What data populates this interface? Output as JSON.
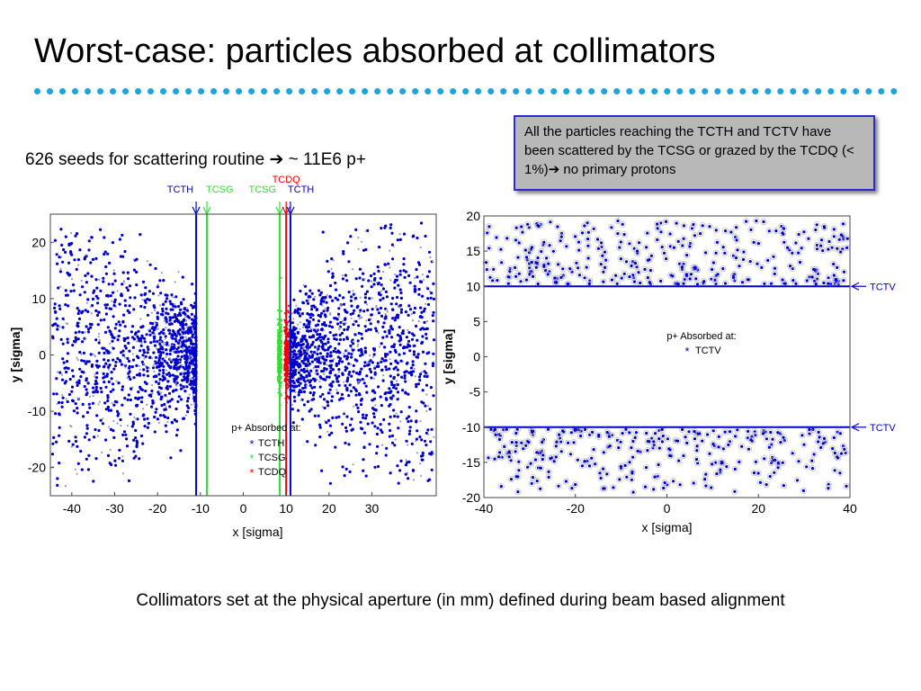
{
  "slide": {
    "title": "Worst-case: particles absorbed at collimators",
    "subtitle": "626 seeds for scattering routine",
    "subtitle_arrow": "➔",
    "subtitle_tail": " ~ 11E6 p+",
    "info_text": "All the particles reaching the TCTH and TCTV have been scattered by the TCSG or grazed by the TCDQ (< 1%)",
    "info_arrow": "➔",
    "info_tail": " no primary protons",
    "footer": "Collimators set at the physical aperture (in mm) defined during beam based alignment",
    "colors": {
      "accent_line": "#1ea3e0",
      "blue": "#0000cc",
      "green": "#33dd33",
      "red": "#ee0000",
      "box_border": "#2b2bd0",
      "box_fill": "#b8b8b8"
    }
  },
  "chart_data": [
    {
      "type": "scatter",
      "xlabel": "x [sigma]",
      "ylabel": "y [sigma]",
      "xlim": [
        -45,
        45
      ],
      "ylim": [
        -25,
        25
      ],
      "xticks": [
        -40,
        -30,
        -20,
        -10,
        0,
        10,
        20,
        30
      ],
      "yticks": [
        -20,
        -10,
        0,
        10,
        20
      ],
      "collimators": [
        {
          "name": "TCTH",
          "x": -11,
          "color": "#0000cc",
          "side": "left"
        },
        {
          "name": "TCSG",
          "x": -8.5,
          "color": "#33dd33",
          "side": "left"
        },
        {
          "name": "TCSG",
          "x": 8.5,
          "color": "#33dd33",
          "side": "right"
        },
        {
          "name": "TCDQ",
          "x": 10,
          "color": "#ee0000",
          "side": "right"
        },
        {
          "name": "TCTH",
          "x": 11,
          "color": "#0000cc",
          "side": "right"
        }
      ],
      "legend": {
        "title": "p+ Absorbed at:",
        "placement": "bottom-center",
        "entries": [
          {
            "marker": "*",
            "label": "TCTH",
            "color": "#0000cc"
          },
          {
            "marker": "*",
            "label": "TCSG",
            "color": "#33dd33"
          },
          {
            "marker": "*",
            "label": "TCDQ",
            "color": "#ee0000"
          }
        ]
      }
    },
    {
      "type": "scatter",
      "xlabel": "x [sigma]",
      "ylabel": "y [sigma]",
      "xlim": [
        -40,
        40
      ],
      "ylim": [
        -20,
        20
      ],
      "xticks": [
        -40,
        -20,
        0,
        20,
        40
      ],
      "yticks": [
        -20,
        -15,
        -10,
        -5,
        0,
        5,
        10,
        15,
        20
      ],
      "collimators": [
        {
          "name": "TCTV",
          "y": 10,
          "color": "#0000cc"
        },
        {
          "name": "TCTV",
          "y": -10,
          "color": "#0000cc"
        }
      ],
      "legend": {
        "title": "p+ Absorbed at:",
        "placement": "center",
        "entries": [
          {
            "marker": "*",
            "label": "TCTV",
            "color": "#0000cc"
          }
        ]
      }
    }
  ]
}
